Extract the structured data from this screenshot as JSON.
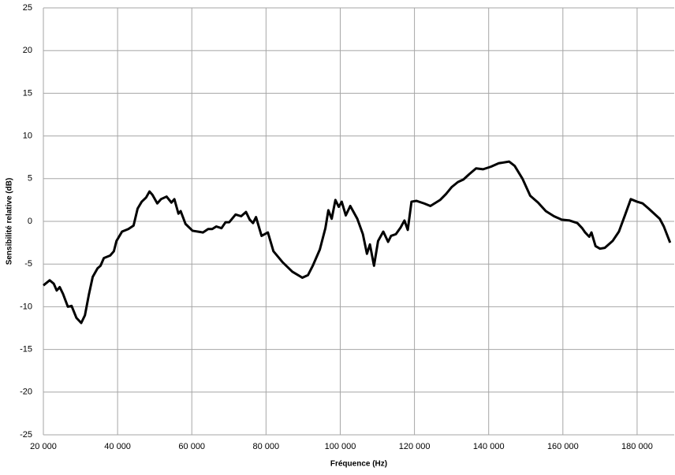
{
  "chart_data": {
    "type": "line",
    "x_label": "Fréquence (Hz)",
    "y_label": "Sensibilité relative (dB)",
    "xlim": [
      20000,
      190000
    ],
    "ylim": [
      -25,
      25
    ],
    "xticks": [
      {
        "value": 20000,
        "label": "20 000"
      },
      {
        "value": 40000,
        "label": "40 000"
      },
      {
        "value": 60000,
        "label": "60 000"
      },
      {
        "value": 80000,
        "label": "80 000"
      },
      {
        "value": 100000,
        "label": "100 000"
      },
      {
        "value": 120000,
        "label": "120 000"
      },
      {
        "value": 140000,
        "label": "140 000"
      },
      {
        "value": 160000,
        "label": "160 000"
      },
      {
        "value": 180000,
        "label": "180 000"
      }
    ],
    "yticks": [
      -25,
      -20,
      -15,
      -10,
      -5,
      0,
      5,
      10,
      15,
      20,
      25
    ],
    "grid": true,
    "x": [
      20000,
      21700,
      22800,
      23600,
      24400,
      25300,
      26600,
      27600,
      28900,
      30200,
      31200,
      32300,
      33300,
      34600,
      35400,
      36300,
      38000,
      39000,
      39700,
      41200,
      42900,
      44300,
      45400,
      46500,
      47700,
      48600,
      49400,
      50700,
      51700,
      53200,
      54500,
      55300,
      56400,
      57000,
      58300,
      60200,
      63000,
      64400,
      65500,
      66600,
      68000,
      69100,
      70100,
      71800,
      73300,
      74600,
      75600,
      76500,
      77300,
      78800,
      80500,
      82000,
      84500,
      87100,
      89800,
      91300,
      92600,
      94500,
      96000,
      96800,
      97700,
      98700,
      99600,
      100400,
      101500,
      102700,
      104600,
      106100,
      107200,
      108000,
      109100,
      110200,
      111600,
      112900,
      113700,
      115000,
      116300,
      117300,
      118200,
      119200,
      120500,
      122600,
      124300,
      126900,
      128500,
      130000,
      131700,
      133200,
      134700,
      136600,
      138500,
      140600,
      142700,
      145500,
      147000,
      149100,
      151200,
      153300,
      155400,
      157600,
      159700,
      161800,
      163900,
      165200,
      166000,
      167100,
      167700,
      168800,
      170000,
      171300,
      173400,
      175100,
      176800,
      178300,
      180000,
      181500,
      183100,
      184600,
      186100,
      187200,
      188900
    ],
    "series": [
      {
        "color": "#000000",
        "values": [
          -7.5,
          -6.9,
          -7.3,
          -8.1,
          -7.7,
          -8.5,
          -10,
          -9.9,
          -11.3,
          -11.9,
          -11,
          -8.5,
          -6.5,
          -5.5,
          -5.2,
          -4.3,
          -4,
          -3.5,
          -2.3,
          -1.2,
          -0.9,
          -0.5,
          1.5,
          2.3,
          2.8,
          3.5,
          3.1,
          2.1,
          2.6,
          2.9,
          2.2,
          2.6,
          0.9,
          1.2,
          -0.3,
          -1.1,
          -1.3,
          -0.9,
          -0.9,
          -0.6,
          -0.8,
          -0.1,
          -0.1,
          0.8,
          0.6,
          1.1,
          0.2,
          -0.2,
          0.5,
          -1.7,
          -1.3,
          -3.5,
          -4.8,
          -5.9,
          -6.6,
          -6.3,
          -5.2,
          -3.3,
          -0.8,
          1.3,
          0.3,
          2.5,
          1.7,
          2.3,
          0.7,
          1.8,
          0.3,
          -1.5,
          -3.8,
          -2.7,
          -5.2,
          -2.3,
          -1.2,
          -2.4,
          -1.7,
          -1.5,
          -0.7,
          0.1,
          -1,
          2.3,
          2.4,
          2.1,
          1.8,
          2.5,
          3.2,
          4,
          4.6,
          4.9,
          5.5,
          6.2,
          6.1,
          6.4,
          6.8,
          7,
          6.5,
          5,
          3,
          2.2,
          1.2,
          0.6,
          0.2,
          0.1,
          -0.2,
          -0.8,
          -1.3,
          -1.8,
          -1.3,
          -2.9,
          -3.2,
          -3.1,
          -2.3,
          -1.2,
          0.8,
          2.6,
          2.3,
          2.1,
          1.5,
          0.9,
          0.3,
          -0.6,
          -2.5
        ]
      }
    ]
  }
}
